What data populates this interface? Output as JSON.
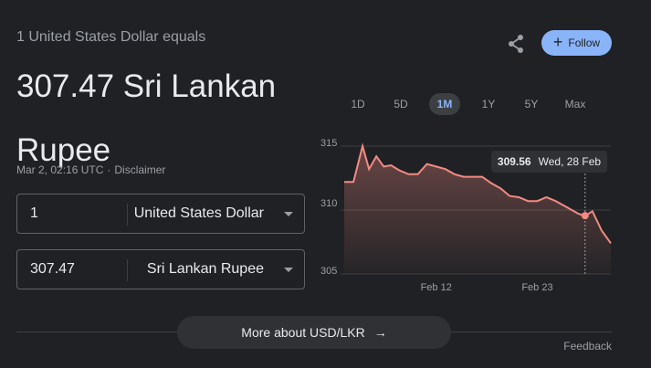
{
  "header": {
    "equals_text": "1 United States Dollar equals",
    "rate_value": "307.47",
    "rate_currency": "Sri Lankan Rupee",
    "timestamp": "Mar 2, 02:16 UTC",
    "separator": "·",
    "disclaimer_label": "Disclaimer"
  },
  "actions": {
    "share_icon": "share-icon",
    "follow_label": "Follow",
    "follow_plus": "+"
  },
  "converter": {
    "from": {
      "amount": "1",
      "currency": "United States Dollar"
    },
    "to": {
      "amount": "307.47",
      "currency": "Sri Lankan Rupee"
    }
  },
  "range_tabs": [
    {
      "label": "1D",
      "active": false
    },
    {
      "label": "5D",
      "active": false
    },
    {
      "label": "1M",
      "active": true
    },
    {
      "label": "1Y",
      "active": false
    },
    {
      "label": "5Y",
      "active": false
    },
    {
      "label": "Max",
      "active": false
    }
  ],
  "tooltip": {
    "value": "309.56",
    "date": "Wed, 28 Feb"
  },
  "chart_data": {
    "type": "area",
    "title": "",
    "xlabel": "",
    "ylabel": "",
    "y_ticks": [
      "315",
      "310",
      "305"
    ],
    "ylim": [
      305,
      315
    ],
    "x_ticks": [
      {
        "label": "Feb 12",
        "x": 11
      },
      {
        "label": "Feb 23",
        "x": 22
      }
    ],
    "xlim": [
      1,
      30
    ],
    "line_color": "#f28b82",
    "grid": true,
    "highlight": {
      "x": 27.2,
      "y": 309.56
    },
    "x": [
      1,
      2,
      3,
      3.7,
      4.5,
      5.3,
      6.1,
      7,
      8,
      9,
      10,
      11,
      12,
      13,
      14,
      15,
      16,
      17,
      18,
      19,
      20,
      21,
      22,
      23,
      24,
      25,
      26,
      26.5,
      27.2,
      28,
      29,
      30
    ],
    "values": [
      312.2,
      312.2,
      315.0,
      313.2,
      314.2,
      313.4,
      313.5,
      313.1,
      312.8,
      312.8,
      313.6,
      313.4,
      313.2,
      312.8,
      312.6,
      312.6,
      312.6,
      312.1,
      311.7,
      311.1,
      311.0,
      310.7,
      310.7,
      311.0,
      310.7,
      310.3,
      309.9,
      309.7,
      309.56,
      309.9,
      308.4,
      307.4
    ]
  },
  "footer": {
    "more_label": "More about USD/LKR",
    "more_arrow": "→",
    "feedback_label": "Feedback"
  }
}
